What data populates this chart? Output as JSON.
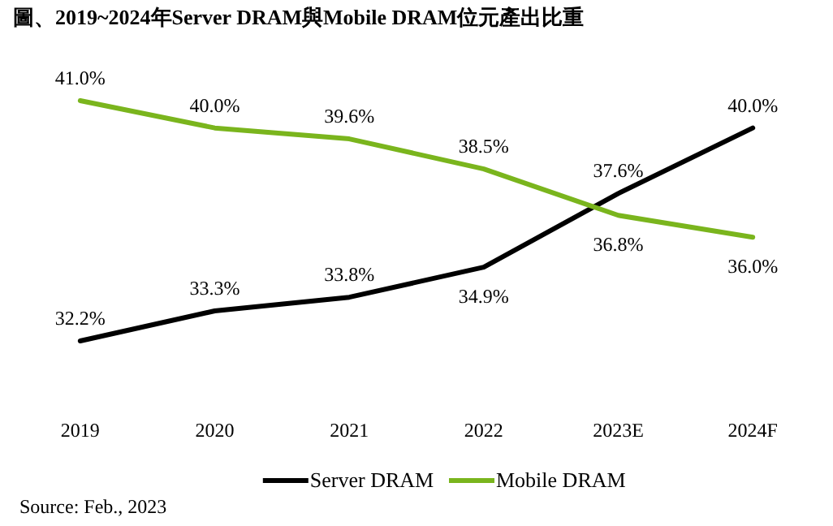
{
  "chart_data": {
    "type": "line",
    "title": "圖、2019~2024年Server DRAM與Mobile DRAM位元產出比重",
    "categories": [
      "2019",
      "2020",
      "2021",
      "2022",
      "2023E",
      "2024F"
    ],
    "series": [
      {
        "name": "Server DRAM",
        "color": "#000000",
        "values": [
          32.2,
          33.3,
          33.8,
          34.9,
          37.6,
          40.0
        ],
        "value_labels": [
          "32.2%",
          "33.3%",
          "33.8%",
          "34.9%",
          "37.6%",
          "40.0%"
        ]
      },
      {
        "name": "Mobile DRAM",
        "color": "#7ab51d",
        "values": [
          41.0,
          40.0,
          39.6,
          38.5,
          36.8,
          36.0
        ],
        "value_labels": [
          "41.0%",
          "40.0%",
          "39.6%",
          "38.5%",
          "36.8%",
          "36.0%"
        ]
      }
    ],
    "legend": "bottom",
    "marker": "none",
    "line_style": "solid",
    "annotations": [
      "Source: Feb.,  2023"
    ]
  }
}
